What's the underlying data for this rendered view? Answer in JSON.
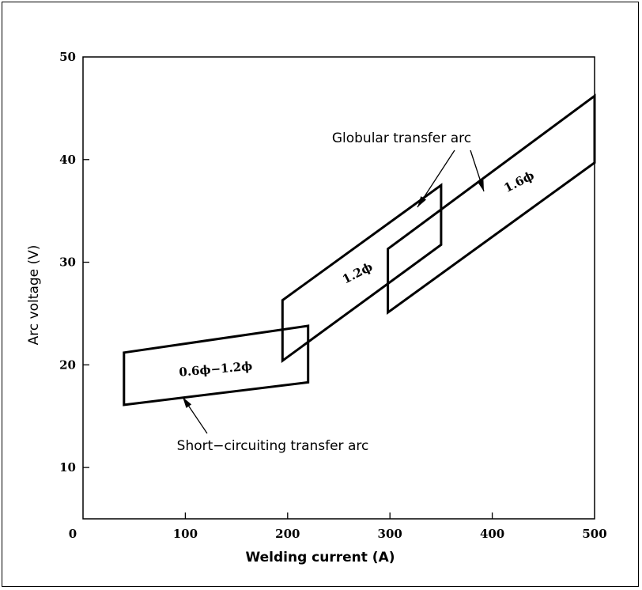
{
  "chart_data": {
    "type": "area",
    "title": "",
    "xlabel": "Welding current (A)",
    "ylabel": "Arc voltage (V)",
    "xlim": [
      0,
      500
    ],
    "ylim": [
      5,
      50
    ],
    "x_ticks": [
      0,
      100,
      200,
      300,
      400,
      500
    ],
    "y_ticks": [
      10,
      20,
      30,
      40,
      50
    ],
    "grid": false,
    "regions": [
      {
        "label": "0.6ϕ−1.2ϕ",
        "polygon": [
          [
            40,
            21.2
          ],
          [
            220,
            23.8
          ],
          [
            220,
            18.3
          ],
          [
            40,
            16.1
          ]
        ]
      },
      {
        "label": "1.2ϕ",
        "polygon": [
          [
            195,
            26.3
          ],
          [
            350,
            37.5
          ],
          [
            350,
            31.7
          ],
          [
            195,
            20.4
          ]
        ]
      },
      {
        "label": "1.6ϕ",
        "polygon": [
          [
            298,
            31.3
          ],
          [
            500,
            46.2
          ],
          [
            500,
            39.7
          ],
          [
            298,
            25.1
          ]
        ]
      }
    ],
    "annotations": [
      {
        "text": "Globular transfer arc"
      },
      {
        "text": "Short−circuiting transfer arc"
      }
    ]
  },
  "colors": {
    "line": "#000000",
    "background": "#ffffff"
  }
}
